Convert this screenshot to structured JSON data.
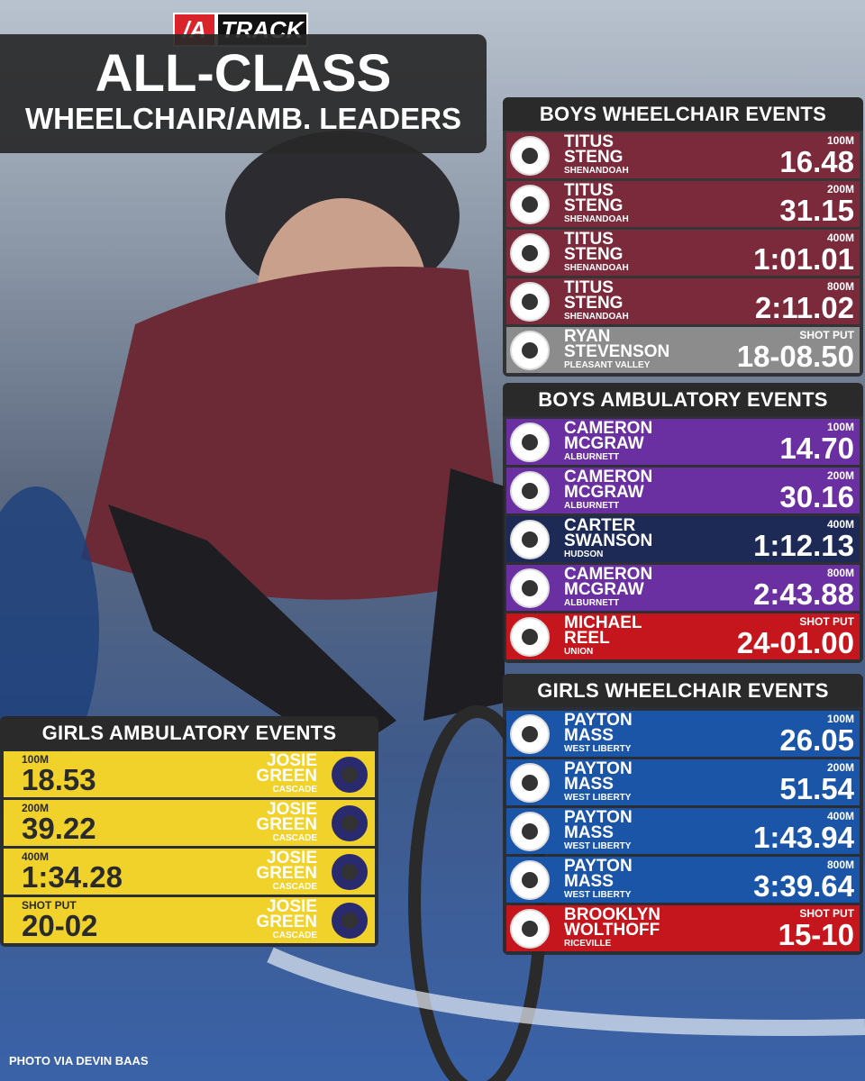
{
  "brand": "TRACK",
  "title": {
    "line1": "ALL-CLASS",
    "line2": "WHEELCHAIR/AMB. LEADERS"
  },
  "sections": [
    {
      "title": "BOYS WHEELCHAIR EVENTS",
      "entries": [
        {
          "event": "100M",
          "first": "TITUS",
          "last": "STENG",
          "school": "SHENANDOAH",
          "mark": "16.48"
        },
        {
          "event": "200M",
          "first": "TITUS",
          "last": "STENG",
          "school": "SHENANDOAH",
          "mark": "31.15"
        },
        {
          "event": "400M",
          "first": "TITUS",
          "last": "STENG",
          "school": "SHENANDOAH",
          "mark": "1:01.01"
        },
        {
          "event": "800M",
          "first": "TITUS",
          "last": "STENG",
          "school": "SHENANDOAH",
          "mark": "2:11.02"
        },
        {
          "event": "SHOT PUT",
          "first": "RYAN",
          "last": "STEVENSON",
          "school": "PLEASANT VALLEY",
          "mark": "18-08.50"
        }
      ]
    },
    {
      "title": "BOYS AMBULATORY EVENTS",
      "entries": [
        {
          "event": "100M",
          "first": "CAMERON",
          "last": "MCGRAW",
          "school": "ALBURNETT",
          "mark": "14.70"
        },
        {
          "event": "200M",
          "first": "CAMERON",
          "last": "MCGRAW",
          "school": "ALBURNETT",
          "mark": "30.16"
        },
        {
          "event": "400M",
          "first": "CARTER",
          "last": "SWANSON",
          "school": "HUDSON",
          "mark": "1:12.13"
        },
        {
          "event": "800M",
          "first": "CAMERON",
          "last": "MCGRAW",
          "school": "ALBURNETT",
          "mark": "2:43.88"
        },
        {
          "event": "SHOT PUT",
          "first": "MICHAEL",
          "last": "REEL",
          "school": "UNION",
          "mark": "24-01.00"
        }
      ]
    },
    {
      "title": "GIRLS WHEELCHAIR EVENTS",
      "entries": [
        {
          "event": "100M",
          "first": "PAYTON",
          "last": "MASS",
          "school": "WEST LIBERTY",
          "mark": "26.05"
        },
        {
          "event": "200M",
          "first": "PAYTON",
          "last": "MASS",
          "school": "WEST LIBERTY",
          "mark": "51.54"
        },
        {
          "event": "400M",
          "first": "PAYTON",
          "last": "MASS",
          "school": "WEST LIBERTY",
          "mark": "1:43.94"
        },
        {
          "event": "800M",
          "first": "PAYTON",
          "last": "MASS",
          "school": "WEST LIBERTY",
          "mark": "3:39.64"
        },
        {
          "event": "SHOT PUT",
          "first": "BROOKLYN",
          "last": "WOLTHOFF",
          "school": "RICEVILLE",
          "mark": "15-10"
        }
      ]
    },
    {
      "title": "GIRLS AMBULATORY EVENTS",
      "entries": [
        {
          "event": "100M",
          "first": "JOSIE",
          "last": "GREEN",
          "school": "CASCADE",
          "mark": "18.53"
        },
        {
          "event": "200M",
          "first": "JOSIE",
          "last": "GREEN",
          "school": "CASCADE",
          "mark": "39.22"
        },
        {
          "event": "400M",
          "first": "JOSIE",
          "last": "GREEN",
          "school": "CASCADE",
          "mark": "1:34.28"
        },
        {
          "event": "SHOT PUT",
          "first": "JOSIE",
          "last": "GREEN",
          "school": "CASCADE",
          "mark": "20-02"
        }
      ]
    }
  ],
  "credit": "PHOTO VIA DEVIN BAAS"
}
